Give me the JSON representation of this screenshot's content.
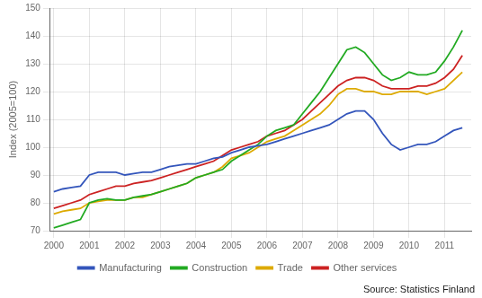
{
  "chart_data": {
    "type": "line",
    "ylabel": "Index (2005=100)",
    "annotations": [
      "Source: Statistics Finland"
    ],
    "xlim": [
      1999.9,
      2011.75
    ],
    "xticks": [
      2000,
      2001,
      2002,
      2003,
      2004,
      2005,
      2006,
      2007,
      2008,
      2009,
      2010,
      2011
    ],
    "ylim": [
      70,
      150
    ],
    "yticks": [
      70,
      80,
      90,
      100,
      110,
      120,
      130,
      140,
      150
    ],
    "grid": true,
    "legend": "bottom",
    "x": [
      2000.0,
      2000.25,
      2000.5,
      2000.75,
      2001.0,
      2001.25,
      2001.5,
      2001.75,
      2002.0,
      2002.25,
      2002.5,
      2002.75,
      2003.0,
      2003.25,
      2003.5,
      2003.75,
      2004.0,
      2004.25,
      2004.5,
      2004.75,
      2005.0,
      2005.25,
      2005.5,
      2005.75,
      2006.0,
      2006.25,
      2006.5,
      2006.75,
      2007.0,
      2007.25,
      2007.5,
      2007.75,
      2008.0,
      2008.25,
      2008.5,
      2008.75,
      2009.0,
      2009.25,
      2009.5,
      2009.75,
      2010.0,
      2010.25,
      2010.5,
      2010.75,
      2011.0,
      2011.25,
      2011.5
    ],
    "series": [
      {
        "name": "Manufacturing",
        "color": "#3355bb",
        "values": [
          84,
          85,
          85.5,
          86,
          90,
          91,
          91,
          91,
          90,
          90.5,
          91,
          91,
          92,
          93,
          93.5,
          94,
          94,
          95,
          96,
          96.5,
          98,
          99,
          100,
          100.5,
          101,
          102,
          103,
          104,
          105,
          106,
          107,
          108,
          110,
          112,
          113,
          113,
          110,
          105,
          101,
          99,
          100,
          101,
          101,
          102,
          104,
          106,
          107
        ]
      },
      {
        "name": "Construction",
        "color": "#22aa22",
        "values": [
          71,
          72,
          73,
          74,
          80,
          81,
          81.5,
          81,
          81,
          82,
          82.5,
          83,
          84,
          85,
          86,
          87,
          89,
          90,
          91,
          92,
          95,
          97,
          99,
          101,
          104,
          106,
          107,
          108,
          112,
          116,
          120,
          125,
          130,
          135,
          136,
          134,
          130,
          126,
          124,
          125,
          127,
          126,
          126,
          127,
          131,
          136,
          142
        ]
      },
      {
        "name": "Trade",
        "color": "#ddaa00",
        "values": [
          76,
          77,
          77.5,
          78,
          80,
          80.5,
          81,
          81,
          81,
          82,
          82,
          83,
          84,
          85,
          86,
          87,
          89,
          90,
          91,
          93,
          96,
          97,
          98,
          100,
          102,
          103,
          104,
          106,
          108,
          110,
          112,
          115,
          119,
          121,
          121,
          120,
          120,
          119,
          119,
          120,
          120,
          120,
          119,
          120,
          121,
          124,
          127
        ]
      },
      {
        "name": "Other services",
        "color": "#cc2222",
        "values": [
          78,
          79,
          80,
          81,
          83,
          84,
          85,
          86,
          86,
          87,
          87.5,
          88,
          89,
          90,
          91,
          92,
          93,
          94,
          95,
          97,
          99,
          100,
          101,
          102,
          104,
          105,
          106,
          108,
          110,
          113,
          116,
          119,
          122,
          124,
          125,
          125,
          124,
          122,
          121,
          121,
          121,
          122,
          122,
          123,
          125,
          128,
          133
        ]
      }
    ]
  }
}
